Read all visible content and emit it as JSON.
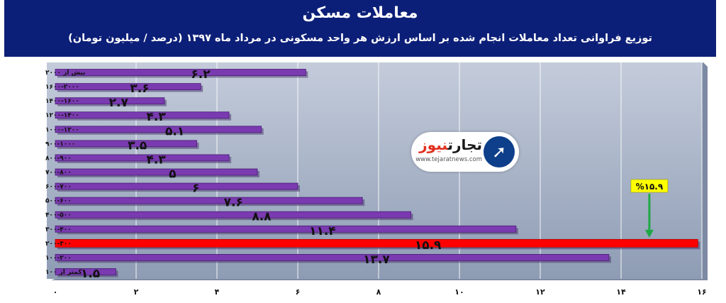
{
  "header": {
    "title": "معاملات مسکن",
    "subtitle": "توزیع فراوانی تعداد معاملات انجام شده بر اساس ارزش هر واحد مسکونی در مرداد ماه ۱۳۹۷ (درصد / میلیون تومان)"
  },
  "logo": {
    "name_part1": "تجارت",
    "name_part2": "نیوز",
    "url": "www.tejaratnews.com",
    "icon": "tejarat-news-logo-icon"
  },
  "colors": {
    "header_bg": "#0c1f78",
    "plot_bg": "#a9b6cb",
    "bar": "#7a3ab0",
    "highlight": "#ff0000",
    "arrow": "#1ea845",
    "callout_bg": "#ffff00"
  },
  "chart_data": {
    "type": "bar",
    "orientation": "horizontal",
    "categories": [
      "بیش از ۲۰۰۰",
      "۱۶۰۰-۲۰۰۰",
      "۱۴۰۰-۱۶۰۰",
      "۱۲۰۰-۱۴۰۰",
      "۱۰۰۰-۱۲۰۰",
      "۹۰۰-۱۰۰۰",
      "۸۰۰-۹۰۰",
      "۷۰۰-۸۰۰",
      "۶۰۰-۷۰۰",
      "۵۰۰-۶۰۰",
      "۴۰۰-۵۰۰",
      "۳۰۰-۴۰۰",
      "۲۰۰-۳۰۰",
      "۱۰۰-۲۰۰",
      "کمتر از ۱۰۰"
    ],
    "values": [
      6.2,
      3.6,
      2.7,
      4.3,
      5.1,
      3.5,
      4.3,
      5,
      6,
      7.6,
      8.8,
      11.4,
      15.9,
      13.7,
      1.5
    ],
    "value_labels": [
      "۶.۲",
      "۳.۶",
      "۲.۷",
      "۴.۳",
      "۵.۱",
      "۳.۵",
      "۴.۳",
      "۵",
      "۶",
      "۷.۶",
      "۸.۸",
      "۱۱.۴",
      "۱۵.۹",
      "۱۳.۷",
      "۱.۵"
    ],
    "highlight_index": 12,
    "xlim": [
      0,
      16
    ],
    "xticks": [
      0,
      2,
      4,
      6,
      8,
      10,
      12,
      14,
      16
    ],
    "xtick_labels": [
      "۰",
      "۲",
      "۴",
      "۶",
      "۸",
      "۱۰",
      "۱۲",
      "۱۴",
      "۱۶"
    ],
    "grid": true,
    "annotation": {
      "text": "%۱۵.۹",
      "x": 14.7,
      "target_index": 12
    }
  }
}
